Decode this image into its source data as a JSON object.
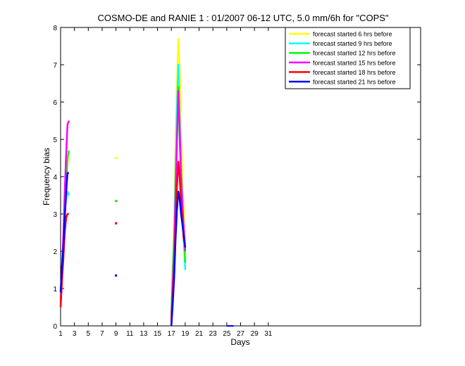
{
  "chart_data": {
    "type": "line",
    "title": "COSMO-DE and RANIE 1 : 01/2007 06-12 UTC, 5.0 mm/6h for \"COPS\"",
    "xlabel": "Days",
    "ylabel": "Frequency bias",
    "xlim": [
      1,
      53
    ],
    "ylim": [
      0,
      8
    ],
    "xticks": [
      1,
      3,
      5,
      7,
      9,
      11,
      13,
      15,
      17,
      19,
      21,
      23,
      25,
      27,
      29,
      31
    ],
    "yticks": [
      0,
      1,
      2,
      3,
      4,
      5,
      6,
      7,
      8
    ],
    "grid": false,
    "legend_position": "top-right",
    "series": [
      {
        "name": "forecast started 6 hrs before",
        "color": "#ffff00",
        "segments": [
          [
            [
              1.0,
              0.9
            ],
            [
              1.2,
              1.3
            ],
            [
              1.4,
              1.8
            ],
            [
              1.6,
              2.9
            ],
            [
              1.8,
              3.7
            ],
            [
              2.0,
              4.4
            ],
            [
              2.2,
              4.5
            ]
          ],
          [
            [
              9.0,
              4.5
            ]
          ],
          [
            [
              17.0,
              0.3
            ],
            [
              17.2,
              1.5
            ],
            [
              17.4,
              2.8
            ],
            [
              17.6,
              4.6
            ],
            [
              17.8,
              6.4
            ],
            [
              18.0,
              7.7
            ],
            [
              18.2,
              6.8
            ],
            [
              18.4,
              5.0
            ],
            [
              18.6,
              3.9
            ],
            [
              18.8,
              3.0
            ],
            [
              19.0,
              1.9
            ]
          ]
        ]
      },
      {
        "name": "forecast started 9 hrs before",
        "color": "#00ffff",
        "segments": [
          [
            [
              1.0,
              0.8
            ],
            [
              1.2,
              1.5
            ],
            [
              1.4,
              2.1
            ],
            [
              1.6,
              3.0
            ],
            [
              1.8,
              3.4
            ],
            [
              2.0,
              3.6
            ],
            [
              2.2,
              3.5
            ]
          ],
          [
            [
              9.0,
              3.35
            ]
          ],
          [
            [
              17.0,
              0.3
            ],
            [
              17.2,
              1.3
            ],
            [
              17.4,
              2.4
            ],
            [
              17.6,
              4.0
            ],
            [
              17.8,
              5.8
            ],
            [
              18.0,
              7.0
            ],
            [
              18.2,
              5.6
            ],
            [
              18.4,
              4.2
            ],
            [
              18.6,
              3.4
            ],
            [
              18.8,
              2.4
            ],
            [
              19.0,
              1.5
            ]
          ]
        ]
      },
      {
        "name": "forecast started 12 hrs before",
        "color": "#00ff00",
        "segments": [
          [
            [
              1.0,
              0.7
            ],
            [
              1.2,
              1.4
            ],
            [
              1.4,
              2.0
            ],
            [
              1.6,
              2.9
            ],
            [
              1.8,
              3.8
            ],
            [
              2.0,
              4.5
            ],
            [
              2.2,
              4.7
            ]
          ],
          [
            [
              9.0,
              3.35
            ]
          ],
          [
            [
              17.0,
              0.3
            ],
            [
              17.2,
              1.5
            ],
            [
              17.4,
              2.2
            ],
            [
              17.6,
              3.6
            ],
            [
              17.8,
              5.0
            ],
            [
              18.0,
              6.4
            ],
            [
              18.2,
              5.0
            ],
            [
              18.4,
              3.9
            ],
            [
              18.6,
              3.0
            ],
            [
              18.8,
              2.3
            ],
            [
              19.0,
              1.7
            ]
          ]
        ]
      },
      {
        "name": "forecast started 15 hrs before",
        "color": "#ff00ff",
        "segments": [
          [
            [
              1.0,
              0.6
            ],
            [
              1.2,
              1.6
            ],
            [
              1.4,
              2.4
            ],
            [
              1.6,
              3.6
            ],
            [
              1.8,
              4.6
            ],
            [
              2.0,
              5.4
            ],
            [
              2.2,
              5.5
            ]
          ],
          [
            [
              9.0,
              2.75
            ]
          ],
          [
            [
              17.0,
              0.2
            ],
            [
              17.2,
              1.1
            ],
            [
              17.4,
              2.0
            ],
            [
              17.6,
              3.4
            ],
            [
              17.8,
              4.9
            ],
            [
              18.0,
              6.3
            ],
            [
              18.2,
              5.3
            ],
            [
              18.4,
              4.0
            ],
            [
              18.6,
              3.2
            ],
            [
              18.8,
              2.6
            ],
            [
              19.0,
              2.0
            ]
          ]
        ]
      },
      {
        "name": "forecast started 18 hrs before",
        "color": "#ff0000",
        "segments": [
          [
            [
              1.0,
              0.5
            ],
            [
              1.2,
              1.2
            ],
            [
              1.4,
              1.8
            ],
            [
              1.6,
              2.5
            ],
            [
              1.8,
              2.9
            ],
            [
              2.0,
              3.0
            ],
            [
              2.2,
              3.0
            ]
          ],
          [
            [
              9.0,
              2.75
            ]
          ],
          [
            [
              17.0,
              0.1
            ],
            [
              17.2,
              0.8
            ],
            [
              17.4,
              1.5
            ],
            [
              17.6,
              2.6
            ],
            [
              17.8,
              3.7
            ],
            [
              18.0,
              4.4
            ],
            [
              18.2,
              4.0
            ],
            [
              18.4,
              3.3
            ],
            [
              18.6,
              2.8
            ],
            [
              18.8,
              2.3
            ],
            [
              19.0,
              2.2
            ]
          ]
        ]
      },
      {
        "name": "forecast started 21 hrs before",
        "color": "#0000ff",
        "segments": [
          [
            [
              1.0,
              0.9
            ],
            [
              1.2,
              1.6
            ],
            [
              1.4,
              2.1
            ],
            [
              1.6,
              2.9
            ],
            [
              1.8,
              3.6
            ],
            [
              2.0,
              4.1
            ],
            [
              2.2,
              4.1
            ]
          ],
          [
            [
              9.0,
              1.35
            ]
          ],
          [
            [
              17.0,
              0.0
            ],
            [
              17.2,
              0.6
            ],
            [
              17.4,
              1.3
            ],
            [
              17.6,
              2.3
            ],
            [
              17.8,
              3.1
            ],
            [
              18.0,
              3.6
            ],
            [
              18.2,
              3.4
            ],
            [
              18.4,
              3.0
            ],
            [
              18.6,
              2.7
            ],
            [
              18.8,
              2.4
            ],
            [
              19.0,
              2.1
            ]
          ]
        ]
      }
    ],
    "extra_marks": [
      {
        "color": "#0000ff",
        "points": [
          [
            25.0,
            0.0
          ],
          [
            26.0,
            0.0
          ]
        ]
      }
    ]
  }
}
